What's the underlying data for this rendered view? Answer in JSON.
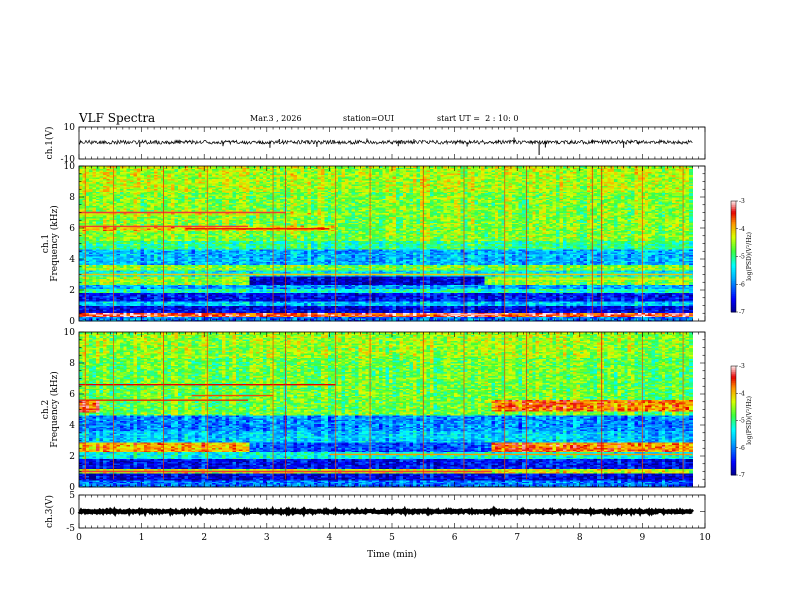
{
  "header": {
    "title": "VLF Spectra",
    "date": "Mar.3 , 2026",
    "station": "station=OUI",
    "start": "start UT =  2 : 10: 0"
  },
  "chart_data": {
    "type": "heatmap",
    "title": "VLF Spectra",
    "xlabel": "Time (min)",
    "xlim": [
      0,
      10
    ],
    "x_ticks": [
      "0",
      "1",
      "2",
      "3",
      "4",
      "5",
      "6",
      "7",
      "8",
      "9",
      "10"
    ],
    "panels": [
      {
        "id": "ch1-waveform",
        "type": "line",
        "ylabel": "ch.1(V)",
        "ylim": [
          -10,
          10
        ],
        "y_ticks": [
          "10",
          "-10"
        ],
        "x_end_min": 9.8,
        "baseline_v": 0.5,
        "noise_amp_v": 1.2,
        "spikes": [
          {
            "t": 0.97,
            "v": -2.5
          },
          {
            "t": 1.6,
            "v": 2.0
          },
          {
            "t": 2.3,
            "v": -2.0
          },
          {
            "t": 3.05,
            "v": -3.0
          },
          {
            "t": 3.2,
            "v": 2.5
          },
          {
            "t": 3.8,
            "v": -2.4
          },
          {
            "t": 4.6,
            "v": 2.8
          },
          {
            "t": 5.1,
            "v": -2.0
          },
          {
            "t": 5.35,
            "v": 2.4
          },
          {
            "t": 6.2,
            "v": -2.2
          },
          {
            "t": 6.7,
            "v": 2.0
          },
          {
            "t": 6.95,
            "v": 3.4
          },
          {
            "t": 7.35,
            "v": -7.5
          },
          {
            "t": 7.45,
            "v": -2.8
          },
          {
            "t": 8.2,
            "v": 2.2
          },
          {
            "t": 8.7,
            "v": -3.0
          },
          {
            "t": 9.3,
            "v": 2.0
          }
        ]
      },
      {
        "id": "ch1-spectrogram",
        "type": "heatmap",
        "ylabel": "ch.1 Frequency (kHz)",
        "ylim": [
          0,
          10
        ],
        "y_ticks": [
          "0",
          "2",
          "4",
          "6",
          "8",
          "10"
        ],
        "x_end_min": 9.8,
        "colorbar": {
          "label": "log(PSD)(V²/Hz)",
          "range": [
            -7,
            -3
          ],
          "ticks": [
            "-3",
            "-4",
            "-5",
            "-6",
            "-7"
          ]
        },
        "background_level": -4.6,
        "bands": [
          {
            "f0": 0.0,
            "f1": 0.3,
            "level": -6.0
          },
          {
            "f0": 0.3,
            "f1": 0.55,
            "level": -3.4,
            "t0": 0,
            "t1": 9.8
          },
          {
            "f0": 0.55,
            "f1": 1.0,
            "level": -6.6
          },
          {
            "f0": 1.0,
            "f1": 1.3,
            "level": -5.6
          },
          {
            "f0": 1.3,
            "f1": 1.8,
            "level": -6.5
          },
          {
            "f0": 1.8,
            "f1": 2.1,
            "level": -5.2
          },
          {
            "f0": 2.1,
            "f1": 2.4,
            "level": -5.8
          },
          {
            "f0": 2.4,
            "f1": 2.9,
            "level": -6.7,
            "t0": 2.7,
            "t1": 6.5
          },
          {
            "f0": 2.9,
            "f1": 3.3,
            "level": -5.4
          },
          {
            "f0": 3.6,
            "f1": 4.6,
            "level": -5.7
          },
          {
            "f0": 4.6,
            "f1": 5.2,
            "level": -5.0
          },
          {
            "f0": 5.8,
            "f1": 6.2,
            "level": -4.1,
            "t0": 0,
            "t1": 4.1
          },
          {
            "f0": 6.8,
            "f1": 7.1,
            "level": -4.3,
            "t0": 0,
            "t1": 4.0
          },
          {
            "f0": 8.4,
            "f1": 10.0,
            "level": -4.4
          }
        ],
        "lines": [
          {
            "f": 6.1,
            "level": -3.3,
            "t0": 0,
            "t1": 2.7
          },
          {
            "f": 7.0,
            "level": -3.3,
            "t0": 0,
            "t1": 3.3
          },
          {
            "f": 5.95,
            "level": -3.4,
            "t0": 1.7,
            "t1": 4.0
          },
          {
            "f": 3.0,
            "level": -4.0,
            "t0": 0,
            "t1": 9.8
          },
          {
            "f": 2.7,
            "level": -4.2,
            "t0": 6.6,
            "t1": 9.8
          },
          {
            "f": 0.42,
            "level": -3.1,
            "t0": 5.9,
            "t1": 6.7
          }
        ],
        "vlines": [
          {
            "t": 0.1,
            "level": -3.6
          },
          {
            "t": 0.55,
            "level": -3.6
          },
          {
            "t": 1.35,
            "level": -3.5
          },
          {
            "t": 2.05,
            "level": -3.6
          },
          {
            "t": 3.1,
            "level": -3.6
          },
          {
            "t": 3.3,
            "level": -3.5
          },
          {
            "t": 4.1,
            "level": -3.6
          },
          {
            "t": 4.65,
            "level": -3.6
          },
          {
            "t": 5.5,
            "level": -3.5
          },
          {
            "t": 6.15,
            "level": -3.6
          },
          {
            "t": 6.8,
            "level": -3.6
          },
          {
            "t": 7.15,
            "level": -3.5
          },
          {
            "t": 8.2,
            "level": -3.5
          },
          {
            "t": 8.35,
            "level": -3.4
          },
          {
            "t": 9.0,
            "level": -3.6
          },
          {
            "t": 9.65,
            "level": -3.6
          }
        ]
      },
      {
        "id": "ch2-spectrogram",
        "type": "heatmap",
        "ylabel": "ch.2 Frequency (kHz)",
        "ylim": [
          0,
          10
        ],
        "y_ticks": [
          "0",
          "2",
          "4",
          "6",
          "8",
          "10"
        ],
        "x_end_min": 9.8,
        "colorbar": {
          "label": "log(PSD)(V²/Hz)",
          "range": [
            -7,
            -3
          ],
          "ticks": [
            "-3",
            "-4",
            "-5",
            "-6",
            "-7"
          ]
        },
        "background_level": -4.7,
        "bands": [
          {
            "f0": 0.0,
            "f1": 0.5,
            "level": -6.0
          },
          {
            "f0": 0.5,
            "f1": 0.9,
            "level": -6.6
          },
          {
            "f0": 0.9,
            "f1": 1.2,
            "level": -4.3
          },
          {
            "f0": 1.2,
            "f1": 1.8,
            "level": -6.5
          },
          {
            "f0": 1.8,
            "f1": 2.3,
            "level": -5.3
          },
          {
            "f0": 2.3,
            "f1": 2.9,
            "level": -3.9,
            "t0": 0,
            "t1": 2.7
          },
          {
            "f0": 2.3,
            "f1": 2.9,
            "level": -6.2,
            "t0": 2.7,
            "t1": 6.6
          },
          {
            "f0": 2.3,
            "f1": 2.9,
            "level": -3.7,
            "t0": 6.6,
            "t1": 9.8
          },
          {
            "f0": 2.9,
            "f1": 3.6,
            "level": -5.6
          },
          {
            "f0": 3.6,
            "f1": 4.6,
            "level": -5.9
          },
          {
            "f0": 4.8,
            "f1": 5.6,
            "level": -3.5,
            "t0": 0,
            "t1": 0.3
          },
          {
            "f0": 4.9,
            "f1": 5.6,
            "level": -3.7,
            "t0": 6.6,
            "t1": 9.8
          },
          {
            "f0": 8.4,
            "f1": 10.0,
            "level": -4.5
          }
        ],
        "lines": [
          {
            "f": 6.6,
            "level": -3.4,
            "t0": 0,
            "t1": 4.1
          },
          {
            "f": 5.6,
            "level": -3.5,
            "t0": 0,
            "t1": 2.7
          },
          {
            "f": 5.9,
            "level": -3.6,
            "t0": 1.8,
            "t1": 3.1
          },
          {
            "f": 2.1,
            "level": -3.8,
            "t0": 4.0,
            "t1": 9.8
          },
          {
            "f": 1.0,
            "level": -3.3,
            "t0": 0,
            "t1": 6.6
          }
        ],
        "vlines": [
          {
            "t": 0.1,
            "level": -3.6
          },
          {
            "t": 0.55,
            "level": -3.6
          },
          {
            "t": 1.35,
            "level": -3.5
          },
          {
            "t": 2.05,
            "level": -3.6
          },
          {
            "t": 3.1,
            "level": -3.6
          },
          {
            "t": 3.3,
            "level": -3.5
          },
          {
            "t": 4.1,
            "level": -3.6
          },
          {
            "t": 4.65,
            "level": -3.6
          },
          {
            "t": 5.5,
            "level": -3.5
          },
          {
            "t": 6.15,
            "level": -3.6
          },
          {
            "t": 6.8,
            "level": -3.6
          },
          {
            "t": 7.15,
            "level": -3.5
          },
          {
            "t": 8.35,
            "level": -3.4
          },
          {
            "t": 9.0,
            "level": -3.6
          },
          {
            "t": 9.65,
            "level": -3.6
          }
        ]
      },
      {
        "id": "ch3-waveform",
        "type": "line",
        "ylabel": "ch.3(V)",
        "ylim": [
          -5,
          5
        ],
        "y_ticks": [
          "5",
          "0",
          "-5"
        ],
        "x_end_min": 9.8,
        "baseline_v": 0,
        "noise_amp_v": 0.25
      }
    ]
  }
}
